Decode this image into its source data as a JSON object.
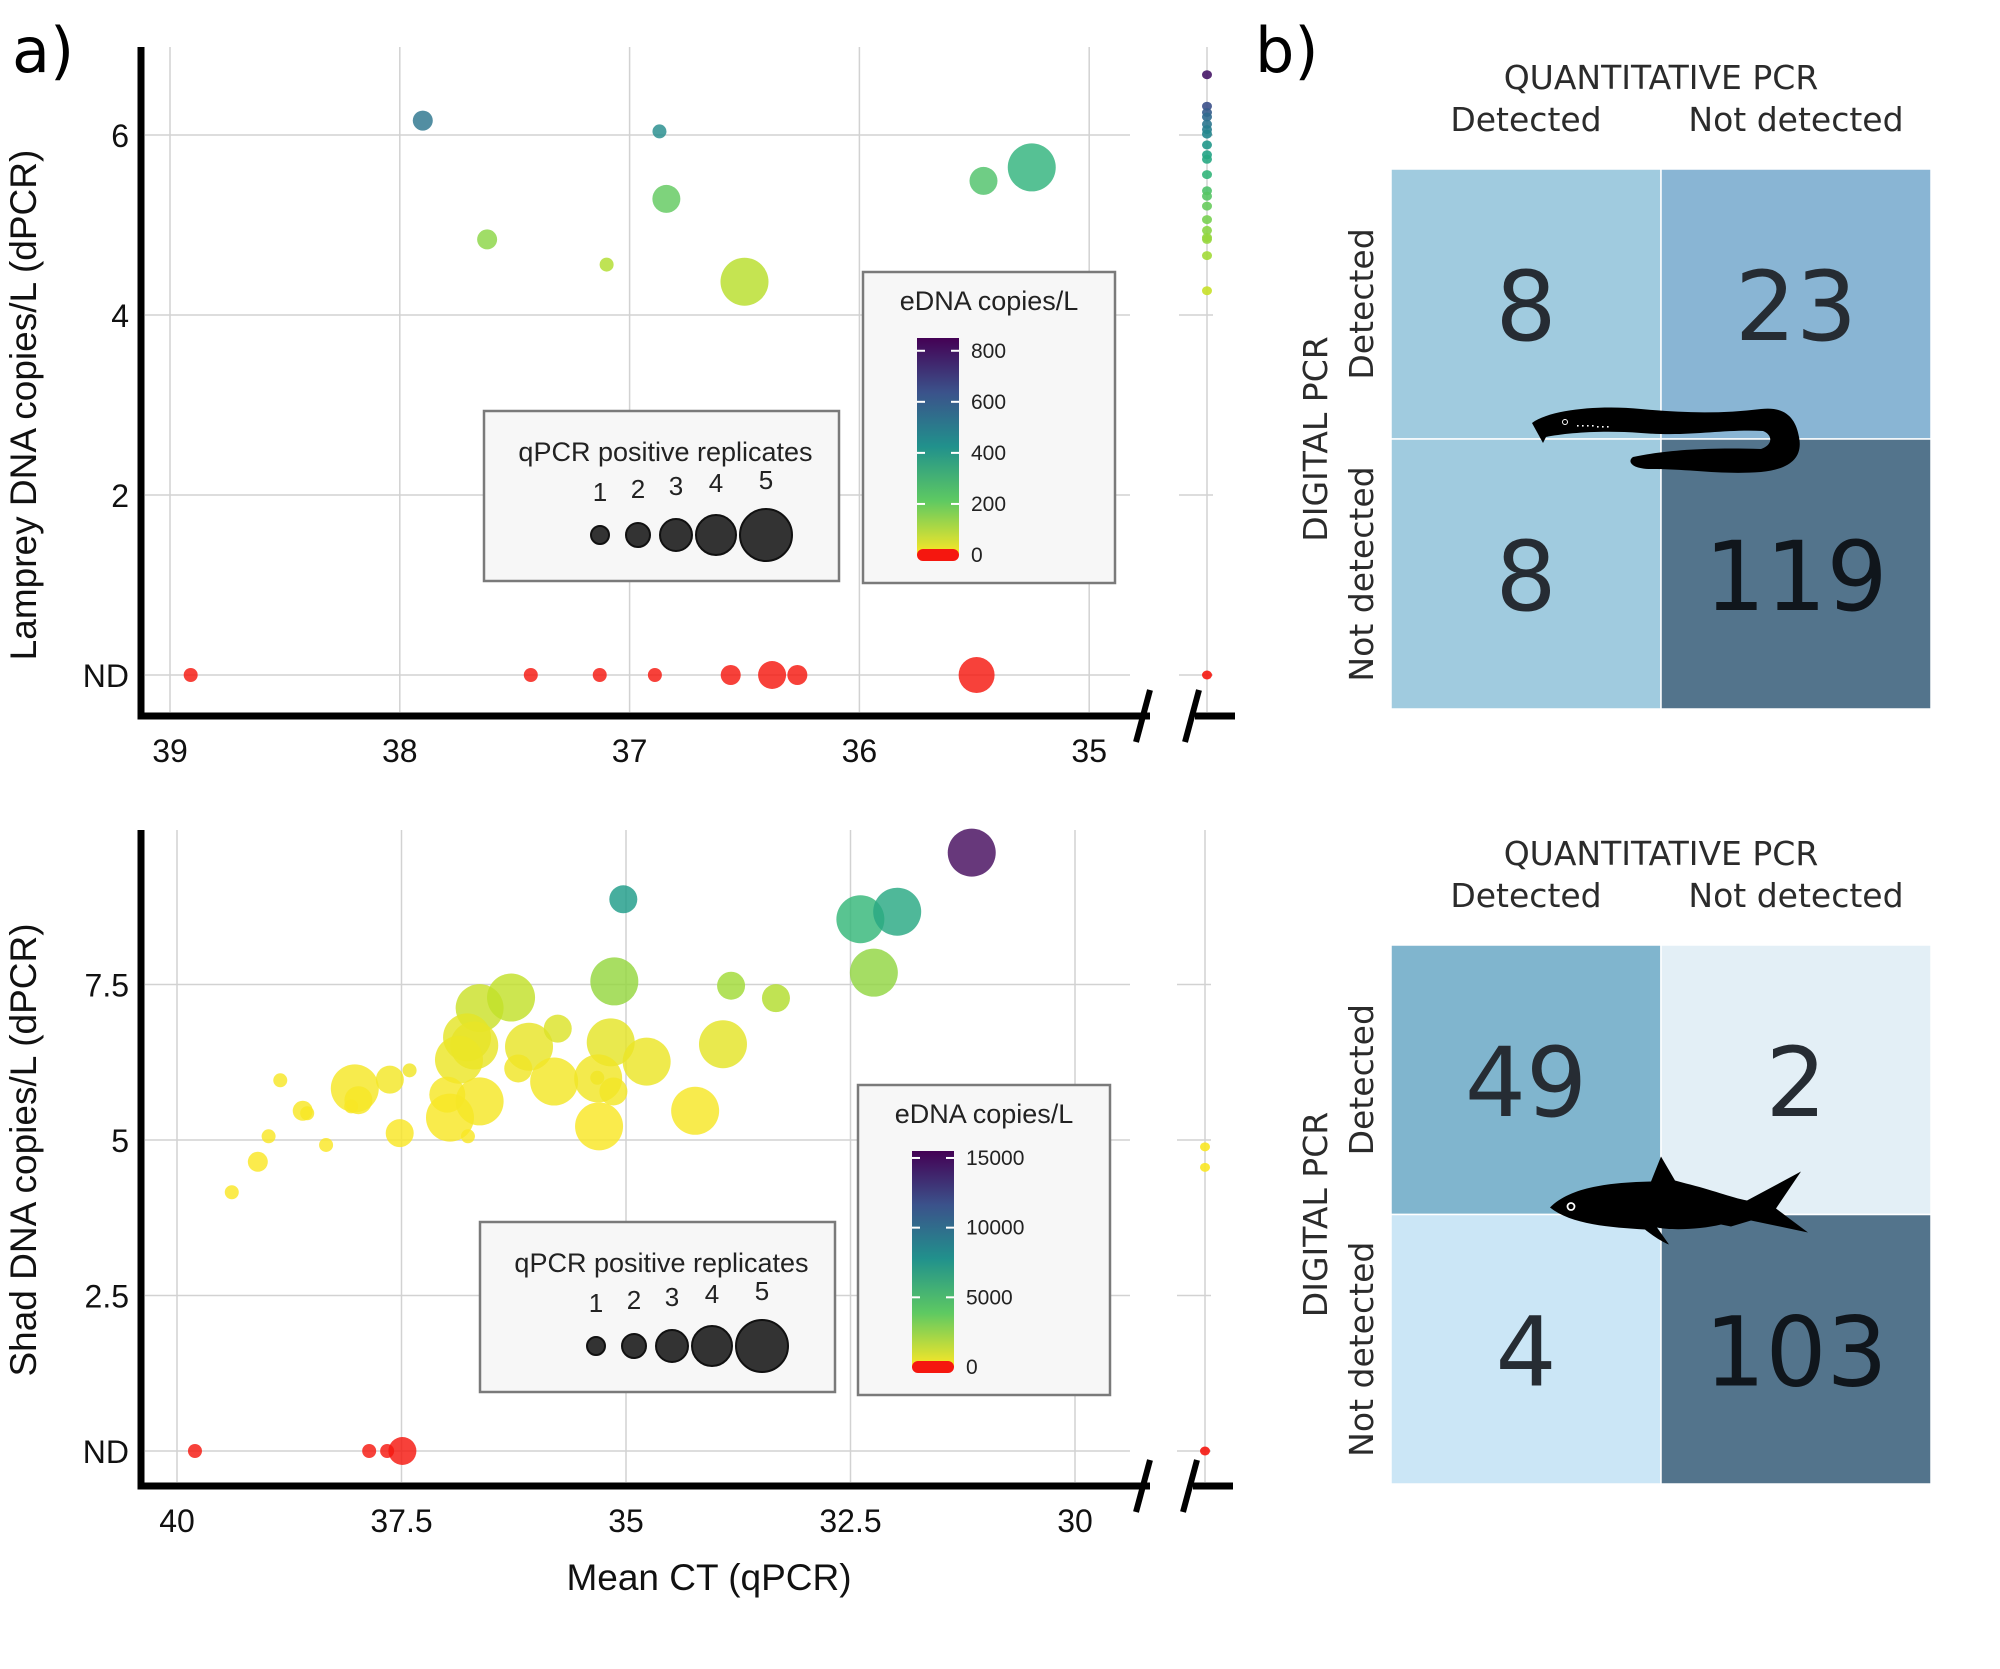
{
  "panel_labels": {
    "a": "a)",
    "b": "b)"
  },
  "chart_data": [
    {
      "id": "lamprey-scatter",
      "type": "scatter",
      "title": "",
      "xlabel": "",
      "ylabel": "Lamprey DNA copies/L (dPCR)",
      "x_reversed": true,
      "xlim": [
        39.15,
        34.9
      ],
      "x_ticks": [
        39,
        38,
        37,
        36,
        35
      ],
      "x_tick_labels": [
        "39",
        "38",
        "37",
        "36",
        "35"
      ],
      "y_ticks": [
        0,
        2,
        4,
        6
      ],
      "y_tick_labels": [
        "ND",
        "2",
        "4",
        "6"
      ],
      "ylim": [
        -0.4,
        6.95
      ],
      "grid": true,
      "broken_x_axis": true,
      "size_legend": {
        "title": "qPCR positive replicates",
        "values": [
          1,
          2,
          3,
          4,
          5
        ],
        "labels": [
          "1",
          "2",
          "3",
          "4",
          "5"
        ]
      },
      "color_legend": {
        "title": "eDNA copies/L",
        "range": [
          0,
          850
        ],
        "ticks": [
          0,
          200,
          400,
          600,
          800
        ],
        "tick_labels": [
          "0",
          "200",
          "400",
          "600",
          "800"
        ],
        "zero_color": "#f5170f"
      },
      "points": [
        {
          "ct": 37.9,
          "y": 6.16,
          "rep": 2,
          "edna": 520
        },
        {
          "ct": 36.87,
          "y": 6.04,
          "rep": 1,
          "edna": 440
        },
        {
          "ct": 37.62,
          "y": 4.84,
          "rep": 2,
          "edna": 150
        },
        {
          "ct": 37.1,
          "y": 4.56,
          "rep": 1,
          "edna": 100
        },
        {
          "ct": 36.84,
          "y": 5.29,
          "rep": 3,
          "edna": 210
        },
        {
          "ct": 36.5,
          "y": 4.37,
          "rep": 5,
          "edna": 90
        },
        {
          "ct": 35.46,
          "y": 5.49,
          "rep": 3,
          "edna": 240
        },
        {
          "ct": 35.25,
          "y": 5.64,
          "rep": 5,
          "edna": 300
        },
        {
          "ct": 38.91,
          "y": 0,
          "rep": 1,
          "edna": 0
        },
        {
          "ct": 37.43,
          "y": 0,
          "rep": 1,
          "edna": 0
        },
        {
          "ct": 37.13,
          "y": 0,
          "rep": 1,
          "edna": 0
        },
        {
          "ct": 36.89,
          "y": 0,
          "rep": 1,
          "edna": 0
        },
        {
          "ct": 36.56,
          "y": 0,
          "rep": 2,
          "edna": 0
        },
        {
          "ct": 36.38,
          "y": 0,
          "rep": 3,
          "edna": 0
        },
        {
          "ct": 36.27,
          "y": 0,
          "rep": 2,
          "edna": 0
        },
        {
          "ct": 35.49,
          "y": 0,
          "rep": 4,
          "edna": 0
        }
      ],
      "not_detected_qpcr_points": [
        {
          "y": 6.67,
          "edna": 800
        },
        {
          "y": 6.32,
          "edna": 640
        },
        {
          "y": 6.25,
          "edna": 600
        },
        {
          "y": 6.2,
          "edna": 560
        },
        {
          "y": 6.12,
          "edna": 520
        },
        {
          "y": 6.06,
          "edna": 490
        },
        {
          "y": 6.01,
          "edna": 460
        },
        {
          "y": 5.89,
          "edna": 400
        },
        {
          "y": 5.78,
          "edna": 360
        },
        {
          "y": 5.73,
          "edna": 340
        },
        {
          "y": 5.56,
          "edna": 290
        },
        {
          "y": 5.38,
          "edna": 240
        },
        {
          "y": 5.32,
          "edna": 225
        },
        {
          "y": 5.21,
          "edna": 200
        },
        {
          "y": 5.06,
          "edna": 175
        },
        {
          "y": 4.94,
          "edna": 150
        },
        {
          "y": 4.86,
          "edna": 140
        },
        {
          "y": 4.84,
          "edna": 135
        },
        {
          "y": 4.66,
          "edna": 120
        },
        {
          "y": 4.27,
          "edna": 70
        },
        {
          "y": 0,
          "edna": 0
        }
      ]
    },
    {
      "id": "shad-scatter",
      "type": "scatter",
      "title": "",
      "xlabel": "Mean CT (qPCR)",
      "ylabel": "Shad DNA copies/L (dPCR)",
      "x_reversed": true,
      "xlim": [
        40.4,
        29.5
      ],
      "x_ticks": [
        40,
        37.5,
        35,
        32.5,
        30
      ],
      "x_tick_labels": [
        "40",
        "37.5",
        "35",
        "32.5",
        "30"
      ],
      "y_ticks": [
        0,
        2.5,
        5,
        7.5
      ],
      "y_tick_labels": [
        "ND",
        "2.5",
        "5",
        "7.5"
      ],
      "ylim": [
        -0.55,
        10.1
      ],
      "grid": true,
      "broken_x_axis": true,
      "size_legend": {
        "title": "qPCR positive replicates",
        "values": [
          1,
          2,
          3,
          4,
          5
        ],
        "labels": [
          "1",
          "2",
          "3",
          "4",
          "5"
        ]
      },
      "color_legend": {
        "title": "eDNA copies/L",
        "range": [
          0,
          15500
        ],
        "ticks": [
          0,
          5000,
          10000,
          15000
        ],
        "tick_labels": [
          "0",
          "5000",
          "10000",
          "15000"
        ],
        "zero_color": "#f5170f"
      },
      "points": [
        {
          "ct": 39.39,
          "y": 4.16,
          "rep": 1,
          "edna": 60
        },
        {
          "ct": 39.1,
          "y": 4.65,
          "rep": 2,
          "edna": 80
        },
        {
          "ct": 38.98,
          "y": 5.06,
          "rep": 1,
          "edna": 90
        },
        {
          "ct": 38.85,
          "y": 5.96,
          "rep": 1,
          "edna": 150
        },
        {
          "ct": 38.6,
          "y": 5.47,
          "rep": 2,
          "edna": 120
        },
        {
          "ct": 38.55,
          "y": 5.43,
          "rep": 1,
          "edna": 110
        },
        {
          "ct": 38.34,
          "y": 4.92,
          "rep": 1,
          "edna": 80
        },
        {
          "ct": 38.02,
          "y": 5.83,
          "rep": 5,
          "edna": 200
        },
        {
          "ct": 37.98,
          "y": 5.64,
          "rep": 3,
          "edna": 150
        },
        {
          "ct": 38.06,
          "y": 5.54,
          "rep": 1,
          "edna": 130
        },
        {
          "ct": 37.63,
          "y": 5.97,
          "rep": 3,
          "edna": 250
        },
        {
          "ct": 37.41,
          "y": 6.12,
          "rep": 1,
          "edna": 300
        },
        {
          "ct": 37.52,
          "y": 5.11,
          "rep": 3,
          "edna": 100
        },
        {
          "ct": 36.63,
          "y": 7.12,
          "rep": 5,
          "edna": 1200
        },
        {
          "ct": 36.28,
          "y": 7.29,
          "rep": 5,
          "edna": 1400
        },
        {
          "ct": 36.77,
          "y": 6.65,
          "rep": 5,
          "edna": 600
        },
        {
          "ct": 36.69,
          "y": 6.52,
          "rep": 5,
          "edna": 500
        },
        {
          "ct": 36.86,
          "y": 6.29,
          "rep": 5,
          "edna": 400
        },
        {
          "ct": 36.99,
          "y": 5.73,
          "rep": 4,
          "edna": 200
        },
        {
          "ct": 36.96,
          "y": 5.36,
          "rep": 5,
          "edna": 120
        },
        {
          "ct": 36.63,
          "y": 5.62,
          "rep": 5,
          "edna": 180
        },
        {
          "ct": 36.76,
          "y": 5.06,
          "rep": 1,
          "edna": 100
        },
        {
          "ct": 36.08,
          "y": 6.5,
          "rep": 5,
          "edna": 500
        },
        {
          "ct": 35.76,
          "y": 6.79,
          "rep": 3,
          "edna": 800
        },
        {
          "ct": 36.2,
          "y": 6.15,
          "rep": 3,
          "edna": 300
        },
        {
          "ct": 35.8,
          "y": 5.94,
          "rep": 5,
          "edna": 250
        },
        {
          "ct": 35.13,
          "y": 7.55,
          "rep": 5,
          "edna": 2500
        },
        {
          "ct": 35.17,
          "y": 6.57,
          "rep": 5,
          "edna": 600
        },
        {
          "ct": 35.31,
          "y": 5.99,
          "rep": 5,
          "edna": 300
        },
        {
          "ct": 35.14,
          "y": 5.78,
          "rep": 3,
          "edna": 250
        },
        {
          "ct": 35.32,
          "y": 6.0,
          "rep": 1,
          "edna": 300
        },
        {
          "ct": 35.3,
          "y": 5.22,
          "rep": 5,
          "edna": 100
        },
        {
          "ct": 34.77,
          "y": 6.26,
          "rep": 5,
          "edna": 400
        },
        {
          "ct": 34.23,
          "y": 5.47,
          "rep": 5,
          "edna": 150
        },
        {
          "ct": 33.92,
          "y": 6.54,
          "rep": 5,
          "edna": 600
        },
        {
          "ct": 33.83,
          "y": 7.48,
          "rep": 3,
          "edna": 2200
        },
        {
          "ct": 33.33,
          "y": 7.28,
          "rep": 3,
          "edna": 1800
        },
        {
          "ct": 35.03,
          "y": 8.87,
          "rep": 3,
          "edna": 7000
        },
        {
          "ct": 32.39,
          "y": 8.55,
          "rep": 5,
          "edna": 5200
        },
        {
          "ct": 31.98,
          "y": 8.67,
          "rep": 5,
          "edna": 6200
        },
        {
          "ct": 32.24,
          "y": 7.69,
          "rep": 5,
          "edna": 2600
        },
        {
          "ct": 31.15,
          "y": 9.62,
          "rep": 5,
          "edna": 15000
        },
        {
          "ct": 39.8,
          "y": 0,
          "rep": 1,
          "edna": 0
        },
        {
          "ct": 37.86,
          "y": 0,
          "rep": 1,
          "edna": 0
        },
        {
          "ct": 37.66,
          "y": 0,
          "rep": 1,
          "edna": 0
        },
        {
          "ct": 37.49,
          "y": 0,
          "rep": 3,
          "edna": 0
        }
      ],
      "not_detected_qpcr_points": [
        {
          "y": 4.89,
          "edna": 80
        },
        {
          "y": 4.56,
          "edna": 60
        },
        {
          "y": 0,
          "edna": 0
        }
      ]
    },
    {
      "id": "lamprey-confusion",
      "type": "heatmap",
      "title": "QUANTITATIVE PCR",
      "xlabel": "QUANTITATIVE PCR",
      "ylabel": "DIGITAL PCR",
      "col_labels": [
        "Detected",
        "Not detected"
      ],
      "row_labels": [
        "Detected",
        "Not detected"
      ],
      "values": [
        [
          8,
          23
        ],
        [
          8,
          119
        ]
      ],
      "cell_colors": [
        [
          "#a0cbdf",
          "#89b5d4"
        ],
        [
          "#a0cbdf",
          "#53748c"
        ]
      ],
      "icon": "lamprey-silhouette"
    },
    {
      "id": "shad-confusion",
      "type": "heatmap",
      "title": "QUANTITATIVE PCR",
      "xlabel": "QUANTITATIVE PCR",
      "ylabel": "DIGITAL PCR",
      "col_labels": [
        "Detected",
        "Not detected"
      ],
      "row_labels": [
        "Detected",
        "Not detected"
      ],
      "values": [
        [
          49,
          2
        ],
        [
          4,
          103
        ]
      ],
      "cell_colors": [
        [
          "#80b5ce",
          "#e3eff6"
        ],
        [
          "#cbe6f6",
          "#53748c"
        ]
      ],
      "icon": "shad-silhouette"
    }
  ]
}
